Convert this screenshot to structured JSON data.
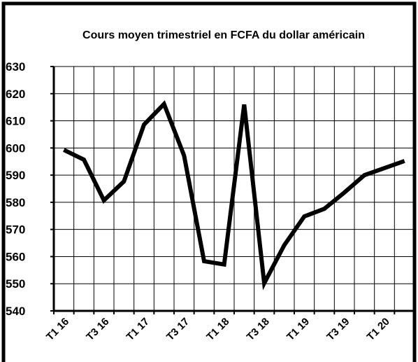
{
  "chart_data": {
    "type": "line",
    "title": "Cours moyen trimestriel en FCFA du dollar américain",
    "categories": [
      "T1 16",
      null,
      "T3 16",
      null,
      "T1 17",
      null,
      "T3 17",
      null,
      "T1 18",
      null,
      "T3 18",
      null,
      "T1 19",
      null,
      "T3 19",
      null,
      "T1 20",
      null
    ],
    "series": [
      {
        "name": null,
        "color": "#000000",
        "values": [
          599.3,
          595.7,
          580.7,
          587.7,
          608.6,
          616.2,
          597.2,
          558.3,
          557.1,
          616.0,
          550.2,
          564.2,
          574.8,
          577.6,
          583.6,
          590.0,
          592.6,
          595.2
        ]
      }
    ],
    "ylim": [
      540,
      630
    ],
    "yticks": [
      540,
      550,
      560,
      570,
      580,
      590,
      600,
      610,
      620,
      630
    ],
    "grid": true
  }
}
